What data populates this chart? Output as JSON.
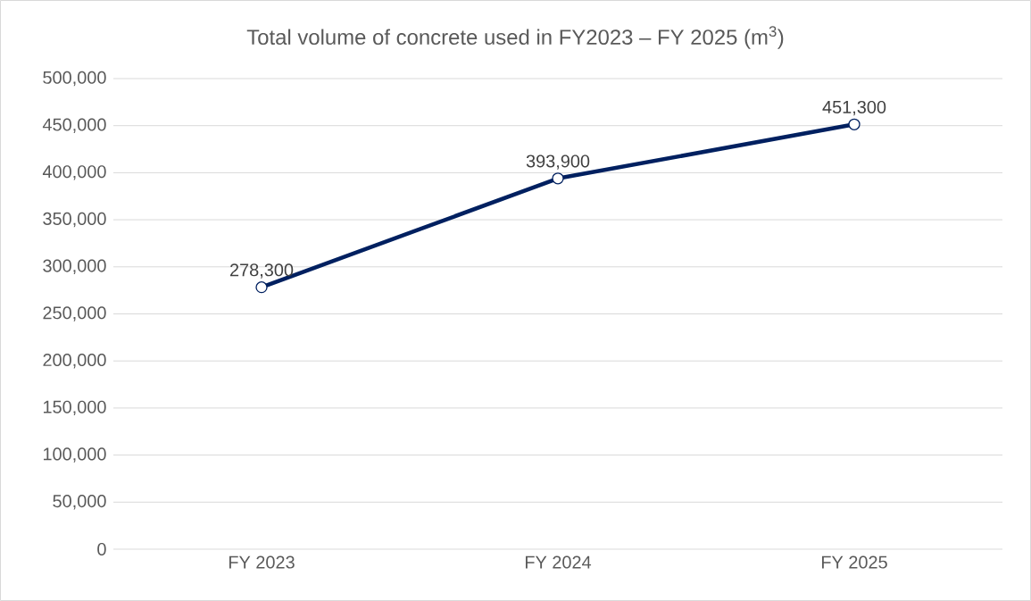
{
  "chart_data": {
    "type": "line",
    "title": "Total volume of concrete used in FY2023 – FY 2025 (m$^{3}$)",
    "categories": [
      "FY 2023",
      "FY 2024",
      "FY 2025"
    ],
    "values": [
      278300,
      393900,
      451300
    ],
    "value_labels": [
      "278,300",
      "393,900",
      "451,300"
    ],
    "color": "#002060",
    "marker": "circle",
    "line_style": "solid",
    "grid": "y",
    "ylim": [
      0,
      500000
    ],
    "yticks": [
      {
        "value": 0,
        "label": "0"
      },
      {
        "value": 50000,
        "label": "50,000"
      },
      {
        "value": 100000,
        "label": "100,000"
      },
      {
        "value": 150000,
        "label": "150,000"
      },
      {
        "value": 200000,
        "label": "200,000"
      },
      {
        "value": 250000,
        "label": "250,000"
      },
      {
        "value": 300000,
        "label": "300,000"
      },
      {
        "value": 350000,
        "label": "350,000"
      },
      {
        "value": 400000,
        "label": "400,000"
      },
      {
        "value": 450000,
        "label": "450,000"
      },
      {
        "value": 500000,
        "label": "500,000"
      }
    ]
  }
}
